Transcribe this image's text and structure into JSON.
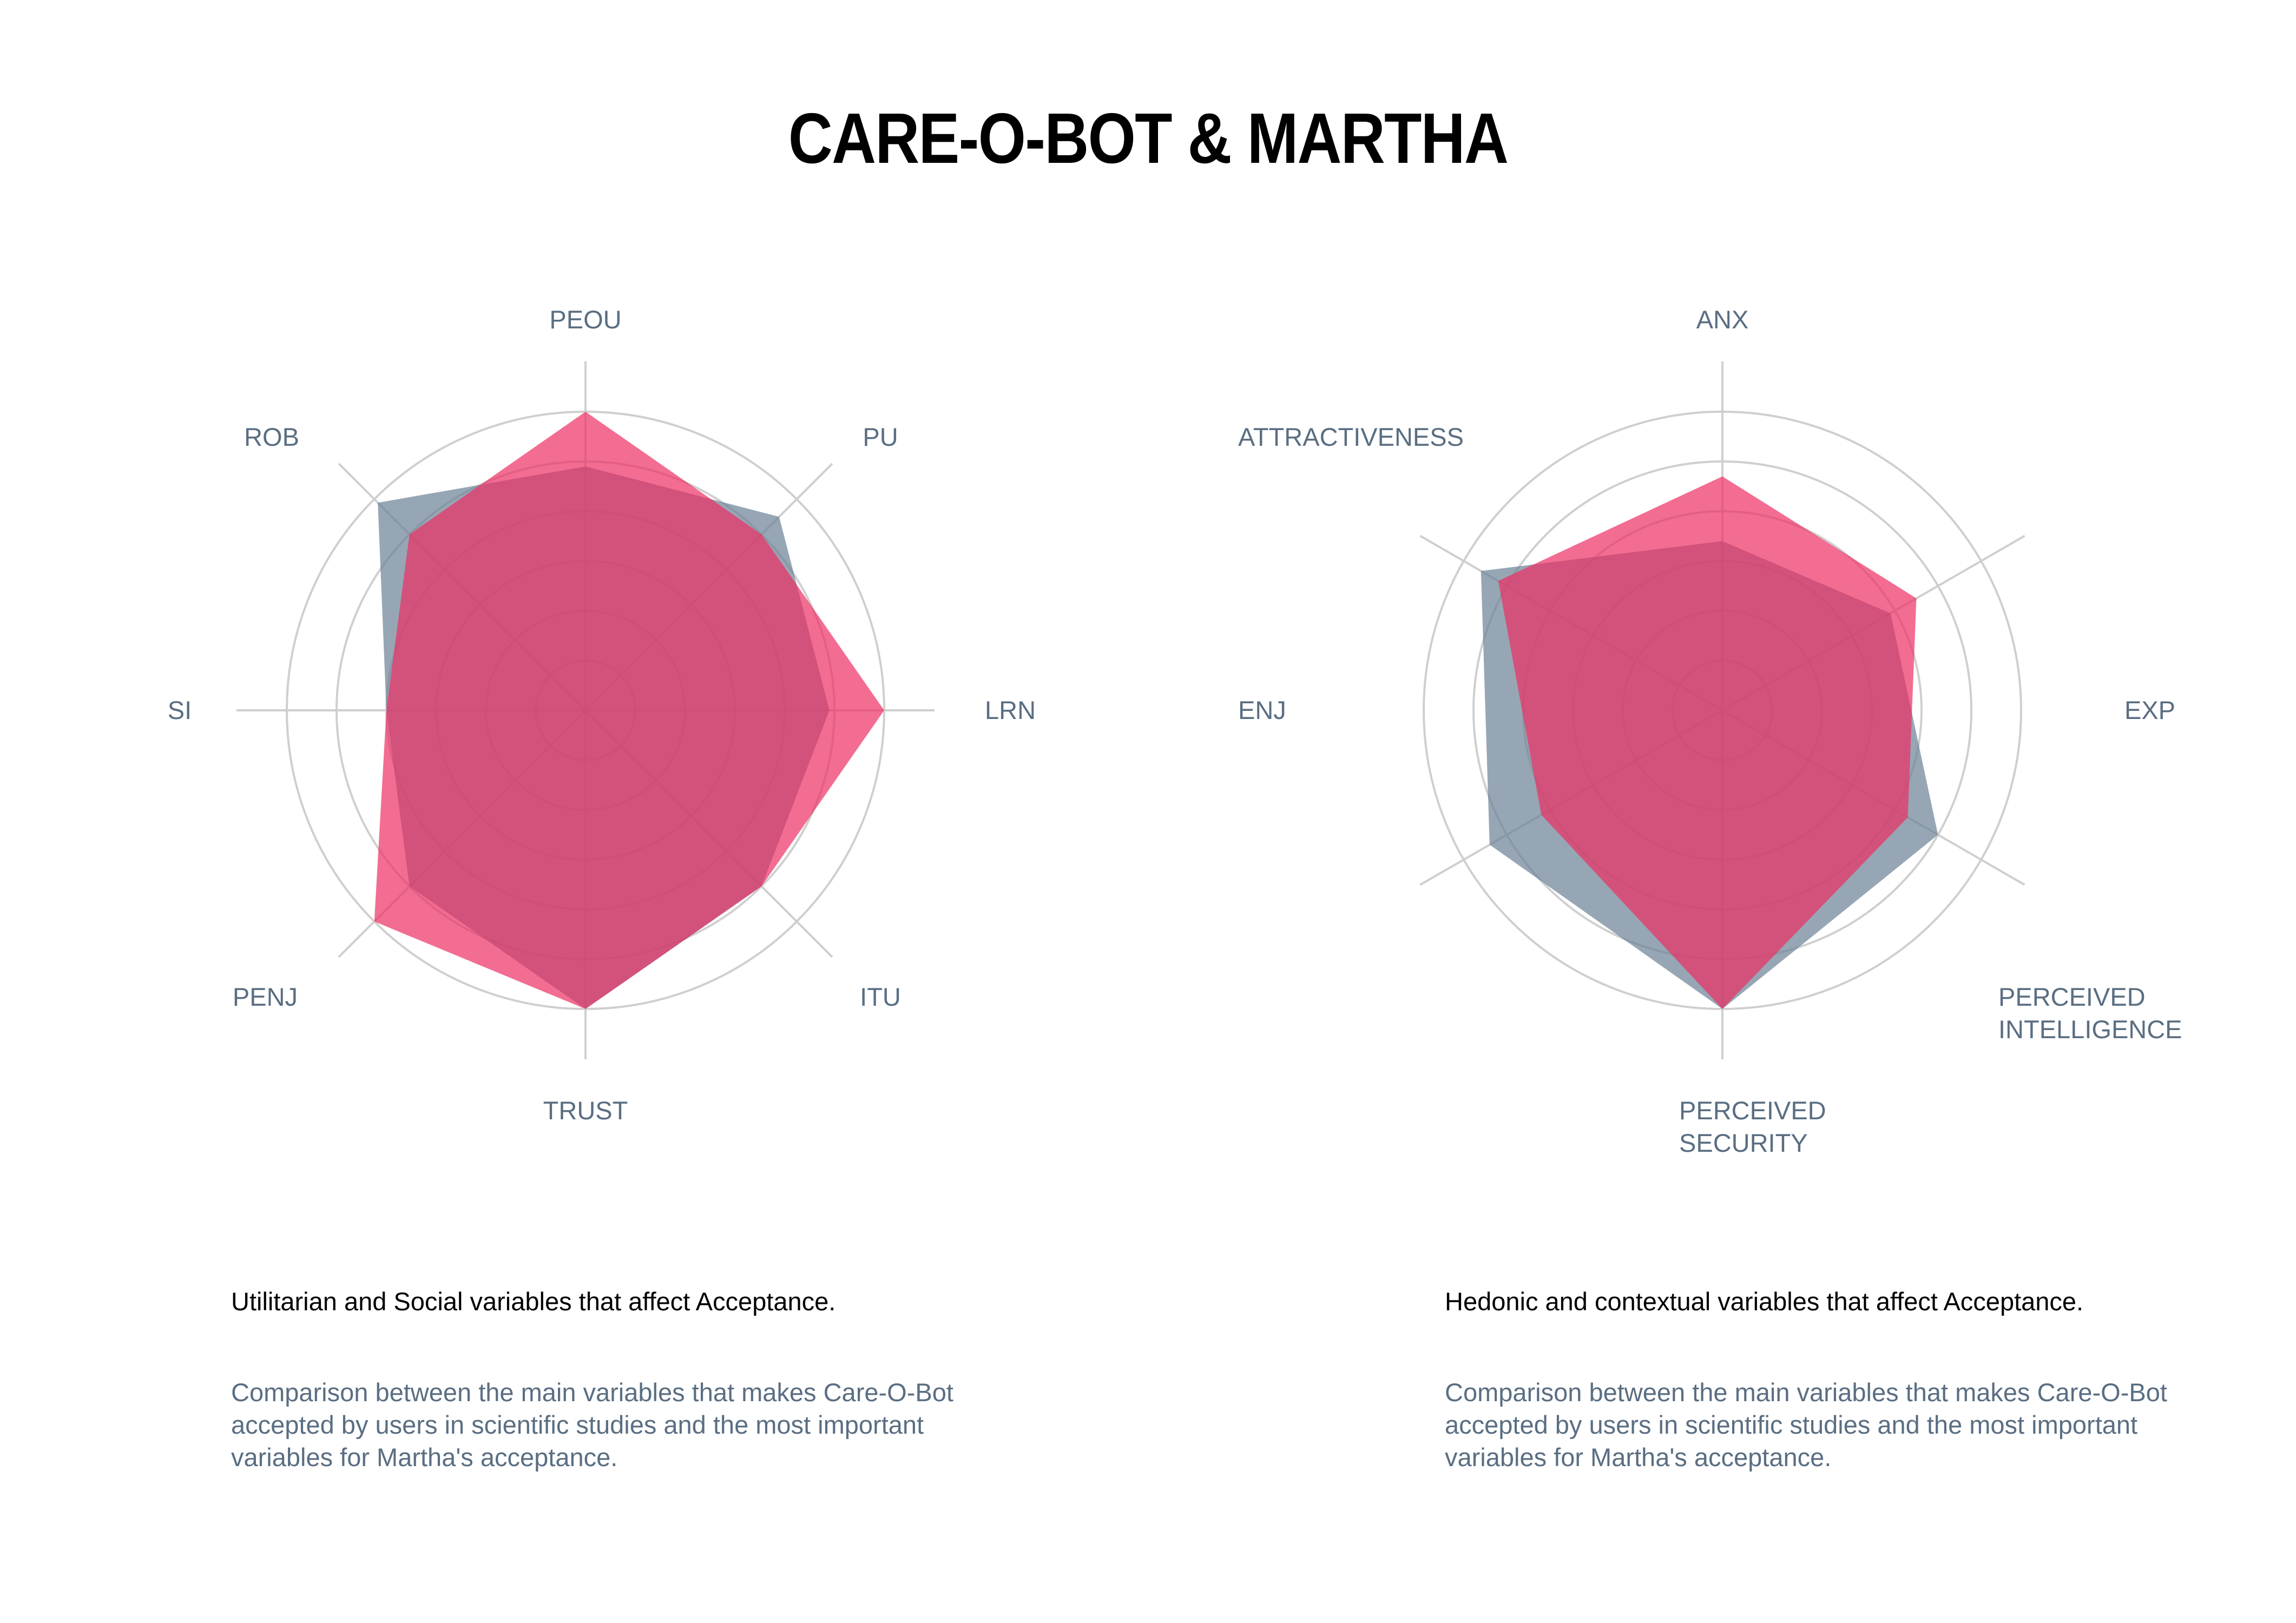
{
  "title": "CARE-O-BOT & MARTHA",
  "colors": {
    "care_o_bot": "#6b8094",
    "martha": "#ec2f63",
    "grid": "#cfcfcf",
    "label": "#5a6e82"
  },
  "chart_data": [
    {
      "type": "radar",
      "title": "",
      "rmax": 6,
      "rings": [
        1,
        2,
        3,
        4,
        5,
        6
      ],
      "grid": true,
      "categories": [
        "PEOU",
        "PU",
        "LRN",
        "ITU",
        "TRUST",
        "PENJ",
        "SI",
        "ROB"
      ],
      "series": [
        {
          "color_key": "care_o_bot",
          "values": [
            4.9,
            5.5,
            4.9,
            5.0,
            6.0,
            5.0,
            4.0,
            5.9
          ]
        },
        {
          "color_key": "martha",
          "values": [
            6.0,
            5.0,
            6.0,
            5.0,
            6.0,
            6.0,
            4.0,
            5.0
          ]
        }
      ],
      "caption": {
        "heading": "Utilitarian and Social variables that affect Acceptance.",
        "lines": [
          "Comparison between the main variables that makes Care-O-Bot",
          "accepted by users in scientific studies and the most important",
          "variables for Martha's acceptance."
        ]
      }
    },
    {
      "type": "radar",
      "title": "",
      "rmax": 6,
      "rings": [
        1,
        2,
        3,
        4,
        5,
        6
      ],
      "grid": true,
      "categories": [
        "ANX",
        "EXP",
        "PERCEIVED INTELLIGENCE",
        "PERCEIVED SECURITY",
        "ENJ",
        "ATTRACTIVENESS"
      ],
      "series": [
        {
          "color_key": "care_o_bot",
          "values": [
            3.4,
            3.9,
            5.0,
            6.0,
            5.4,
            5.6
          ]
        },
        {
          "color_key": "martha",
          "values": [
            4.7,
            4.5,
            4.3,
            6.0,
            4.2,
            5.2
          ]
        }
      ],
      "caption": {
        "heading": "Hedonic and contextual variables that affect Acceptance.",
        "lines": [
          "Comparison between the main variables that makes Care-O-Bot",
          "accepted by users in scientific studies and the most important",
          "variables for Martha's acceptance."
        ]
      }
    }
  ]
}
